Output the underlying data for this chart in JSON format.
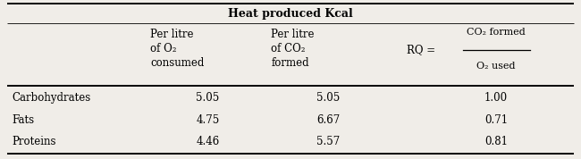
{
  "title": "Heat produced Kcal",
  "rows": [
    [
      "Carbohydrates",
      "5.05",
      "5.05",
      "1.00"
    ],
    [
      "Fats",
      "4.75",
      "6.67",
      "0.71"
    ],
    [
      "Proteins",
      "4.46",
      "5.57",
      "0.81"
    ]
  ],
  "rq_numerator": "CO₂ formed",
  "rq_denominator": "O₂ used",
  "rq_label": "RQ =",
  "background_color": "#f0ede8",
  "header_fontsize": 8.5,
  "cell_fontsize": 8.5,
  "title_fontsize": 9.0
}
